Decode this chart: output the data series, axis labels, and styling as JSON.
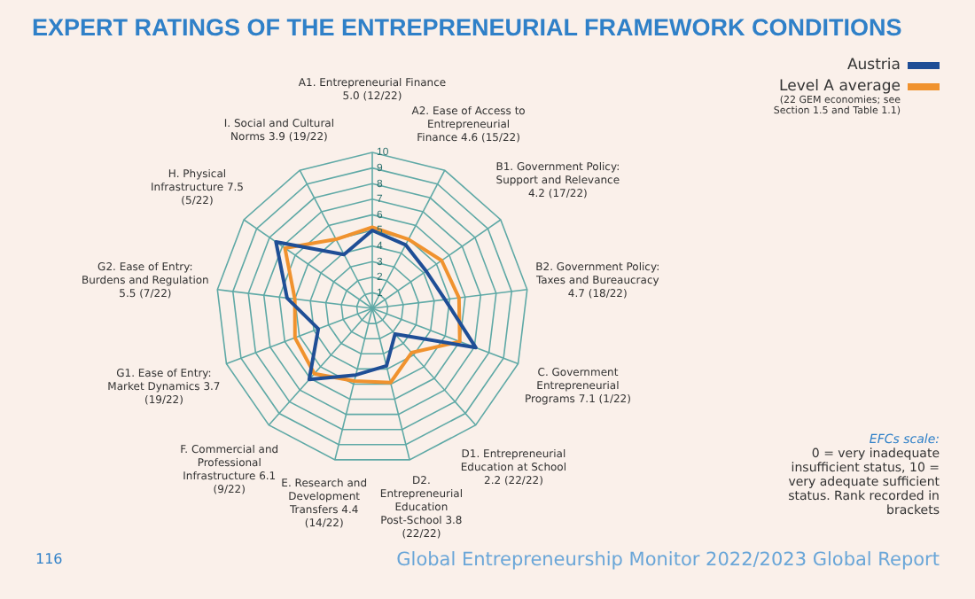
{
  "chart_data": {
    "type": "radar",
    "title": "EXPERT RATINGS OF THE ENTREPRENEURIAL FRAMEWORK CONDITIONS",
    "categories": [
      "A1. Entrepreneurial Finance 5.0 (12/22)",
      "A2. Ease of Access to Entrepreneurial Finance 4.6 (15/22)",
      "B1. Government Policy: Support and Relevance 4.2 (17/22)",
      "B2. Government Policy: Taxes and Bureaucracy 4.7 (18/22)",
      "C. Government Entrepreneurial Programs 7.1 (1/22)",
      "D1. Entrepreneurial Education at School 2.2 (22/22)",
      "D2. Entrepreneurial Education Post-School 3.8 (22/22)",
      "E. Research and Development Transfers 4.4 (14/22)",
      "F. Commercial and Professional Infrastructure 6.1 (9/22)",
      "G1. Ease of Entry: Market Dynamics 3.7 (19/22)",
      "G2. Ease of Entry: Burdens and Regulation 5.5 (7/22)",
      "H. Physical Infrastructure 7.5 (5/22)",
      "I. Social and Cultural Norms 3.9 (19/22)"
    ],
    "series": [
      {
        "name": "Austria",
        "color": "#1f4e96",
        "values": [
          5.0,
          4.6,
          4.2,
          4.7,
          7.1,
          2.2,
          3.8,
          4.4,
          6.1,
          3.7,
          5.5,
          7.5,
          3.9
        ]
      },
      {
        "name": "Level A average",
        "color": "#f0922e",
        "values": [
          5.2,
          5.0,
          5.4,
          5.6,
          6.0,
          3.8,
          4.9,
          4.8,
          5.6,
          5.3,
          5.0,
          6.8,
          5.0
        ]
      }
    ],
    "ylim": [
      0,
      10
    ],
    "yticks": [
      1,
      2,
      3,
      4,
      5,
      6,
      7,
      8,
      9,
      10
    ],
    "grid": true,
    "legend": "top right",
    "marker": "none",
    "annotations": [
      "(22 GEM economies; see Section 1.5 and Table 1.1)",
      "EFCs scale:",
      "0 = very inadequate insufficient status, 10 = very adequate sufficient status. Rank recorded in brackets",
      "116",
      "Global Entrepreneurship Monitor 2022/2023 Global Report"
    ]
  }
}
